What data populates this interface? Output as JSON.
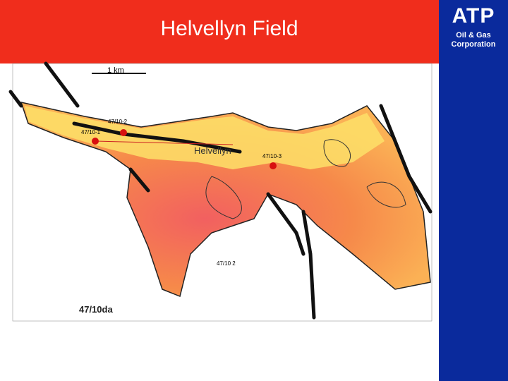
{
  "header": {
    "title": "Helvellyn Field"
  },
  "logo": {
    "name": "ATP",
    "line1": "Oil & Gas",
    "line2": "Corporation"
  },
  "map": {
    "scale_label": "1 km",
    "field_label": "Helvellyn",
    "block_label": "47/10da",
    "wells": [
      {
        "label": "47/10-1"
      },
      {
        "label": "47/10-2"
      },
      {
        "label": "47/10-3"
      },
      {
        "label": "47/10 2"
      }
    ]
  }
}
